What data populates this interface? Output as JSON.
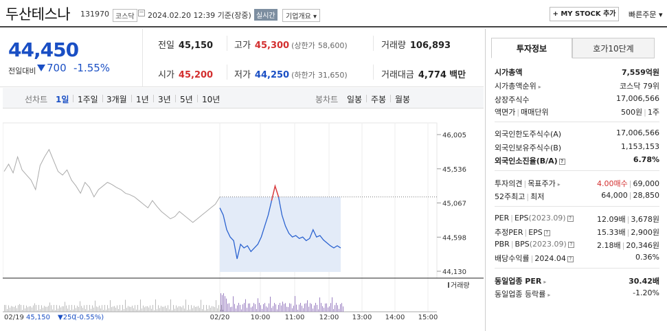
{
  "header": {
    "name": "두산테스나",
    "code": "131970",
    "market": "코스닥",
    "datetime": "2024.02.20 12:39 기준(장중)",
    "live_label": "실시간",
    "overview_label": "기업개요",
    "overview_arrow": "▾",
    "mystock_label": "+ MY STOCK 추가",
    "quick_order_label": "빠른주문",
    "quick_order_arrow": "▾"
  },
  "price": {
    "current": "44,450",
    "change_label": "전일대비",
    "change": "700",
    "rate": "-1.55%",
    "prev_label": "전일",
    "prev": "45,150",
    "open_label": "시가",
    "open": "45,200",
    "high_label": "고가",
    "high": "45,300",
    "upper_limit_label": "(상한가",
    "upper_limit": "58,600)",
    "low_label": "저가",
    "low": "44,250",
    "lower_limit_label": "(하한가",
    "lower_limit": "31,650)",
    "volume_label": "거래량",
    "volume": "106,893",
    "amount_label": "거래대금",
    "amount": "4,774",
    "amount_unit": "백만"
  },
  "period_bar": {
    "line_label": "선차트",
    "line_items": [
      "1일",
      "1주일",
      "3개월",
      "1년",
      "3년",
      "5년",
      "10년"
    ],
    "active_index": 0,
    "candle_label": "봉차트",
    "candle_items": [
      "일봉",
      "주봉",
      "월봉"
    ]
  },
  "chart_data": {
    "type": "line",
    "y_ticks": [
      "46,005",
      "45,536",
      "45,067",
      "44,598",
      "44,130"
    ],
    "ylim": [
      44130,
      46005
    ],
    "prev_close": 45150,
    "volume_label": "거래량",
    "x_tick_labels": [
      "02/19",
      "02/20",
      "10:00",
      "11:00",
      "12:00",
      "13:00",
      "14:00",
      "15:00"
    ],
    "footer_date": "02/19",
    "footer_price": "45,150",
    "footer_change": "▼250",
    "footer_rate": "(-0.55%)",
    "series": [
      {
        "key": "prev_day",
        "color": "#aaaaaa",
        "values": [
          45500,
          45600,
          45480,
          45700,
          45520,
          45450,
          45380,
          45250,
          45580,
          45700,
          45800,
          45650,
          45500,
          45450,
          45520,
          45380,
          45300,
          45200,
          45350,
          45280,
          45150,
          45250,
          45300,
          45350,
          45320,
          45280,
          45250,
          45200,
          45180,
          45150,
          45100,
          45050,
          45000,
          45100,
          45020,
          44950,
          44900,
          44850,
          44880,
          44950,
          44900,
          44850,
          44800,
          44850,
          44900,
          44950,
          45000,
          45050,
          45150
        ]
      },
      {
        "key": "today",
        "color": "#2a62d0",
        "values": [
          45000,
          44900,
          44700,
          44600,
          44550,
          44300,
          44500,
          44450,
          44480,
          44400,
          44450,
          44500,
          44600,
          44750,
          44900,
          45100,
          45300,
          45150,
          44900,
          44750,
          44650,
          44600,
          44620,
          44580,
          44600,
          44550,
          44580,
          44700,
          44600,
          44620,
          44560,
          44520,
          44480,
          44450,
          44480,
          44450
        ]
      }
    ],
    "high_point_color": "#e53935",
    "volume_color": "#9a7fc1"
  },
  "sidebar": {
    "tabs": [
      "투자정보",
      "호가10단계"
    ],
    "active_tab": 0,
    "market_cap_label": "시가총액",
    "market_cap": "7,559억원",
    "rank_label": "시가총액순위",
    "rank": "코스닥 79위",
    "shares_label": "상장주식수",
    "shares": "17,006,566",
    "par_label": "액면가",
    "unit_label": "매매단위",
    "par": "500원",
    "unit": "1주",
    "foreign_limit_label": "외국인한도주식수(A)",
    "foreign_limit": "17,006,566",
    "foreign_hold_label": "외국인보유주식수(B)",
    "foreign_hold": "1,153,153",
    "foreign_rate_label": "외국인소진율(B/A)",
    "foreign_rate": "6.78%",
    "opinion_label": "투자의견",
    "target_label": "목표주가",
    "opinion": "4.00매수",
    "target": "69,000",
    "w52_high_label": "52주최고",
    "w52_low_label": "최저",
    "w52_high": "64,000",
    "w52_low": "28,850",
    "per_label": "PER",
    "eps_label": "EPS",
    "eps_year": "(2023.09)",
    "per": "12.09배",
    "eps": "3,678원",
    "est_per_label": "추정PER",
    "est_eps_label": "EPS",
    "est_per": "15.33배",
    "est_eps": "2,900원",
    "pbr_label": "PBR",
    "bps_label": "BPS",
    "bps_year": "(2023.09)",
    "pbr": "2.18배",
    "bps": "20,346원",
    "div_label": "배당수익률",
    "div_year": "2024.04",
    "div": "0.36%",
    "ind_per_label": "동일업종 PER",
    "ind_per": "30.42배",
    "ind_rate_label": "동일업종 등락률",
    "ind_rate": "-1.20%",
    "q_mark": "?"
  }
}
